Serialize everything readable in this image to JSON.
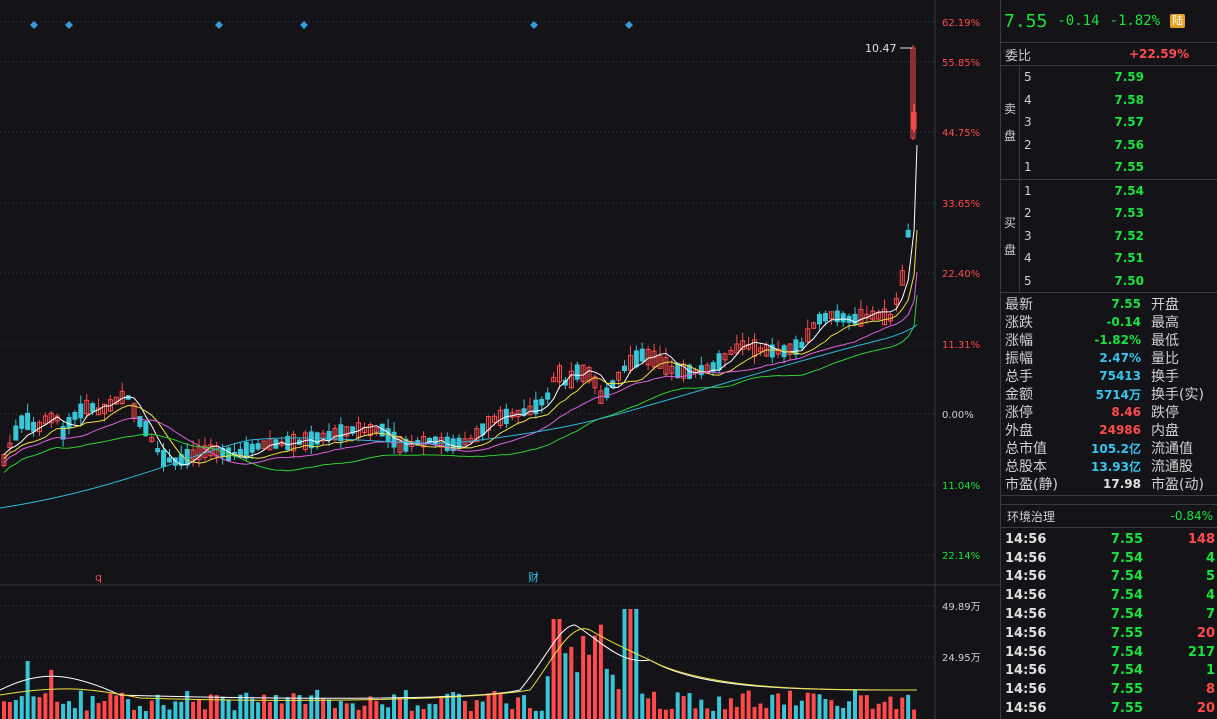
{
  "colors": {
    "up": "#ff4a4a",
    "down": "#37c6d8",
    "ma5": "#ffffff",
    "ma10": "#f0e040",
    "ma20": "#e060e0",
    "ma30": "#30d030",
    "ma60": "#30b8d8",
    "marker": "#3a9ad8"
  },
  "header": {
    "price": "7.55",
    "change": "-0.14",
    "change_pct": "-1.82%",
    "market_badge": "陆"
  },
  "weibi": {
    "label": "委比",
    "value": "+22.59%"
  },
  "sell": {
    "label_top": "卖",
    "label_bottom": "盘",
    "rows": [
      {
        "level": "5",
        "price": "7.59"
      },
      {
        "level": "4",
        "price": "7.58"
      },
      {
        "level": "3",
        "price": "7.57"
      },
      {
        "level": "2",
        "price": "7.56"
      },
      {
        "level": "1",
        "price": "7.55"
      }
    ]
  },
  "buy": {
    "label_top": "买",
    "label_bottom": "盘",
    "rows": [
      {
        "level": "1",
        "price": "7.54"
      },
      {
        "level": "2",
        "price": "7.53"
      },
      {
        "level": "3",
        "price": "7.52"
      },
      {
        "level": "4",
        "price": "7.51"
      },
      {
        "level": "5",
        "price": "7.50"
      }
    ]
  },
  "stats": [
    {
      "label": "最新",
      "value": "7.55",
      "color": "#19e33c",
      "label2": "开盘"
    },
    {
      "label": "涨跌",
      "value": "-0.14",
      "color": "#19e33c",
      "label2": "最高"
    },
    {
      "label": "涨幅",
      "value": "-1.82%",
      "color": "#19e33c",
      "label2": "最低"
    },
    {
      "label": "振幅",
      "value": "2.47%",
      "color": "#37c6f0",
      "label2": "量比"
    },
    {
      "label": "总手",
      "value": "75413",
      "color": "#37c6f0",
      "label2": "换手"
    },
    {
      "label": "金额",
      "value": "5714万",
      "color": "#37c6f0",
      "label2": "换手(实)"
    },
    {
      "label": "涨停",
      "value": "8.46",
      "color": "#ff4a4a",
      "label2": "跌停"
    },
    {
      "label": "外盘",
      "value": "24986",
      "color": "#ff4a4a",
      "label2": "内盘"
    },
    {
      "label": "总市值",
      "value": "105.2亿",
      "color": "#37c6f0",
      "label2": "流通值"
    },
    {
      "label": "总股本",
      "value": "13.93亿",
      "color": "#37c6f0",
      "label2": "流通股"
    },
    {
      "label": "市盈(静)",
      "value": "17.98",
      "color": "#e0e0e0",
      "label2": "市盈(动)"
    }
  ],
  "sector": {
    "name": "环境治理",
    "change": "-0.84%"
  },
  "ticks": [
    {
      "time": "14:56",
      "price": "7.55",
      "volume": "148",
      "dir": "up"
    },
    {
      "time": "14:56",
      "price": "7.54",
      "volume": "4",
      "dir": "down"
    },
    {
      "time": "14:56",
      "price": "7.54",
      "volume": "5",
      "dir": "down"
    },
    {
      "time": "14:56",
      "price": "7.54",
      "volume": "4",
      "dir": "down"
    },
    {
      "time": "14:56",
      "price": "7.54",
      "volume": "7",
      "dir": "down"
    },
    {
      "time": "14:56",
      "price": "7.55",
      "volume": "20",
      "dir": "up"
    },
    {
      "time": "14:56",
      "price": "7.54",
      "volume": "217",
      "dir": "down"
    },
    {
      "time": "14:56",
      "price": "7.54",
      "volume": "1",
      "dir": "down"
    },
    {
      "time": "14:56",
      "price": "7.55",
      "volume": "8",
      "dir": "up"
    },
    {
      "time": "14:56",
      "price": "7.55",
      "volume": "20",
      "dir": "up"
    }
  ],
  "chart": {
    "price_axis_labels": [
      "62.19%",
      "55.85%",
      "44.75%",
      "33.65%",
      "22.40%",
      "11.31%",
      "0.00%",
      "11.04%",
      "22.14%"
    ],
    "price_axis_colors": [
      "#ff4a4a",
      "#ff4a4a",
      "#ff4a4a",
      "#ff4a4a",
      "#ff4a4a",
      "#ff4a4a",
      "#d0d0d0",
      "#19e33c",
      "#19e33c"
    ],
    "high_label": "10.47",
    "event_labels": [
      "q",
      "财"
    ],
    "volume_axis_labels": [
      "49.89万",
      "24.95万"
    ]
  }
}
